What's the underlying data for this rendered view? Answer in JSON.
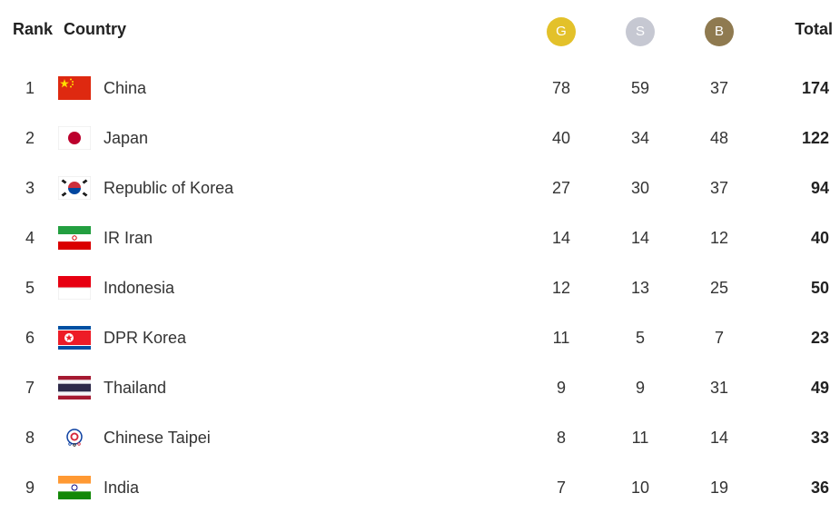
{
  "header": {
    "rank": "Rank",
    "country": "Country",
    "gold": "G",
    "silver": "S",
    "bronze": "B",
    "total": "Total"
  },
  "colors": {
    "gold": "#e3c12a",
    "silver": "#c6c8d2",
    "bronze": "#8f7a50"
  },
  "rows": [
    {
      "rank": "1",
      "country": "China",
      "flag": "china-flag-icon",
      "gold": "78",
      "silver": "59",
      "bronze": "37",
      "total": "174"
    },
    {
      "rank": "2",
      "country": "Japan",
      "flag": "japan-flag-icon",
      "gold": "40",
      "silver": "34",
      "bronze": "48",
      "total": "122"
    },
    {
      "rank": "3",
      "country": "Republic of Korea",
      "flag": "korea-flag-icon",
      "gold": "27",
      "silver": "30",
      "bronze": "37",
      "total": "94"
    },
    {
      "rank": "4",
      "country": "IR Iran",
      "flag": "iran-flag-icon",
      "gold": "14",
      "silver": "14",
      "bronze": "12",
      "total": "40"
    },
    {
      "rank": "5",
      "country": "Indonesia",
      "flag": "indonesia-flag-icon",
      "gold": "12",
      "silver": "13",
      "bronze": "25",
      "total": "50"
    },
    {
      "rank": "6",
      "country": "DPR Korea",
      "flag": "dpr-korea-flag-icon",
      "gold": "11",
      "silver": "5",
      "bronze": "7",
      "total": "23"
    },
    {
      "rank": "7",
      "country": "Thailand",
      "flag": "thailand-flag-icon",
      "gold": "9",
      "silver": "9",
      "bronze": "31",
      "total": "49"
    },
    {
      "rank": "8",
      "country": "Chinese Taipei",
      "flag": "chinese-taipei-flag-icon",
      "gold": "8",
      "silver": "11",
      "bronze": "14",
      "total": "33"
    },
    {
      "rank": "9",
      "country": "India",
      "flag": "india-flag-icon",
      "gold": "7",
      "silver": "10",
      "bronze": "19",
      "total": "36"
    }
  ]
}
